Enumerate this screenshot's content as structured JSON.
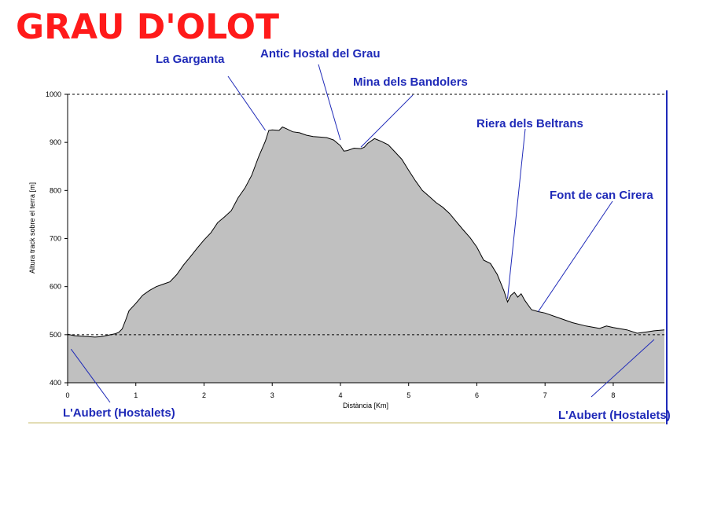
{
  "chart_data": {
    "type": "area",
    "title": "GRAU D'OLOT",
    "xlabel": "Distància [Km]",
    "ylabel": "Altura track sobre el terra [m]",
    "xlim": [
      0,
      8.75
    ],
    "ylim": [
      400,
      1000
    ],
    "x_ticks": [
      "0",
      "1",
      "2",
      "3",
      "4",
      "5",
      "6",
      "7",
      "8"
    ],
    "y_ticks": [
      "400",
      "500",
      "600",
      "700",
      "800",
      "900",
      "1000"
    ],
    "reference_lines": [
      500,
      1000
    ],
    "fill_color": "#c0c0c0",
    "title_color": "#ff1a1a",
    "label_color": "#1f2ab8",
    "annotations": [
      {
        "text": "La Garganta",
        "x": 2.9,
        "y": 925
      },
      {
        "text": "Antic Hostal del Grau",
        "x": 4.0,
        "y": 905
      },
      {
        "text": "Mina dels Bandolers",
        "x": 4.3,
        "y": 890
      },
      {
        "text": "Riera dels Beltrans",
        "x": 6.45,
        "y": 575
      },
      {
        "text": "Font de can Cirera",
        "x": 6.9,
        "y": 548
      },
      {
        "text": "L'Aubert (Hostalets)",
        "x": 0.05,
        "y": 470
      },
      {
        "text": "L'Aubert (Hostalets)",
        "x": 8.6,
        "y": 490
      }
    ],
    "series": [
      {
        "points": [
          [
            0,
            501
          ],
          [
            0.1,
            498
          ],
          [
            0.2,
            497
          ],
          [
            0.3,
            496
          ],
          [
            0.4,
            495
          ],
          [
            0.5,
            496
          ],
          [
            0.6,
            499
          ],
          [
            0.7,
            502
          ],
          [
            0.75,
            505
          ],
          [
            0.8,
            512
          ],
          [
            0.85,
            530
          ],
          [
            0.9,
            550
          ],
          [
            1.0,
            565
          ],
          [
            1.1,
            582
          ],
          [
            1.2,
            592
          ],
          [
            1.3,
            600
          ],
          [
            1.4,
            605
          ],
          [
            1.5,
            610
          ],
          [
            1.6,
            625
          ],
          [
            1.7,
            645
          ],
          [
            1.8,
            662
          ],
          [
            1.9,
            680
          ],
          [
            2.0,
            697
          ],
          [
            2.1,
            712
          ],
          [
            2.2,
            733
          ],
          [
            2.3,
            745
          ],
          [
            2.4,
            758
          ],
          [
            2.5,
            785
          ],
          [
            2.6,
            805
          ],
          [
            2.7,
            832
          ],
          [
            2.8,
            870
          ],
          [
            2.9,
            903
          ],
          [
            2.95,
            925
          ],
          [
            3.0,
            926
          ],
          [
            3.1,
            925
          ],
          [
            3.15,
            932
          ],
          [
            3.2,
            929
          ],
          [
            3.3,
            922
          ],
          [
            3.4,
            920
          ],
          [
            3.5,
            915
          ],
          [
            3.6,
            912
          ],
          [
            3.7,
            911
          ],
          [
            3.8,
            910
          ],
          [
            3.9,
            905
          ],
          [
            4.0,
            893
          ],
          [
            4.05,
            882
          ],
          [
            4.1,
            883
          ],
          [
            4.2,
            888
          ],
          [
            4.3,
            887
          ],
          [
            4.35,
            890
          ],
          [
            4.4,
            898
          ],
          [
            4.5,
            908
          ],
          [
            4.55,
            905
          ],
          [
            4.6,
            902
          ],
          [
            4.7,
            895
          ],
          [
            4.8,
            880
          ],
          [
            4.9,
            865
          ],
          [
            5.0,
            842
          ],
          [
            5.1,
            820
          ],
          [
            5.2,
            800
          ],
          [
            5.3,
            788
          ],
          [
            5.4,
            775
          ],
          [
            5.5,
            765
          ],
          [
            5.6,
            752
          ],
          [
            5.7,
            735
          ],
          [
            5.8,
            718
          ],
          [
            5.9,
            702
          ],
          [
            6.0,
            682
          ],
          [
            6.1,
            655
          ],
          [
            6.2,
            648
          ],
          [
            6.3,
            625
          ],
          [
            6.4,
            590
          ],
          [
            6.45,
            568
          ],
          [
            6.5,
            582
          ],
          [
            6.55,
            588
          ],
          [
            6.6,
            578
          ],
          [
            6.65,
            585
          ],
          [
            6.7,
            572
          ],
          [
            6.8,
            552
          ],
          [
            6.9,
            548
          ],
          [
            7.0,
            545
          ],
          [
            7.2,
            535
          ],
          [
            7.4,
            525
          ],
          [
            7.6,
            518
          ],
          [
            7.8,
            513
          ],
          [
            7.9,
            518
          ],
          [
            8.0,
            515
          ],
          [
            8.2,
            510
          ],
          [
            8.35,
            503
          ],
          [
            8.5,
            506
          ],
          [
            8.6,
            508
          ],
          [
            8.75,
            510
          ]
        ]
      }
    ]
  }
}
